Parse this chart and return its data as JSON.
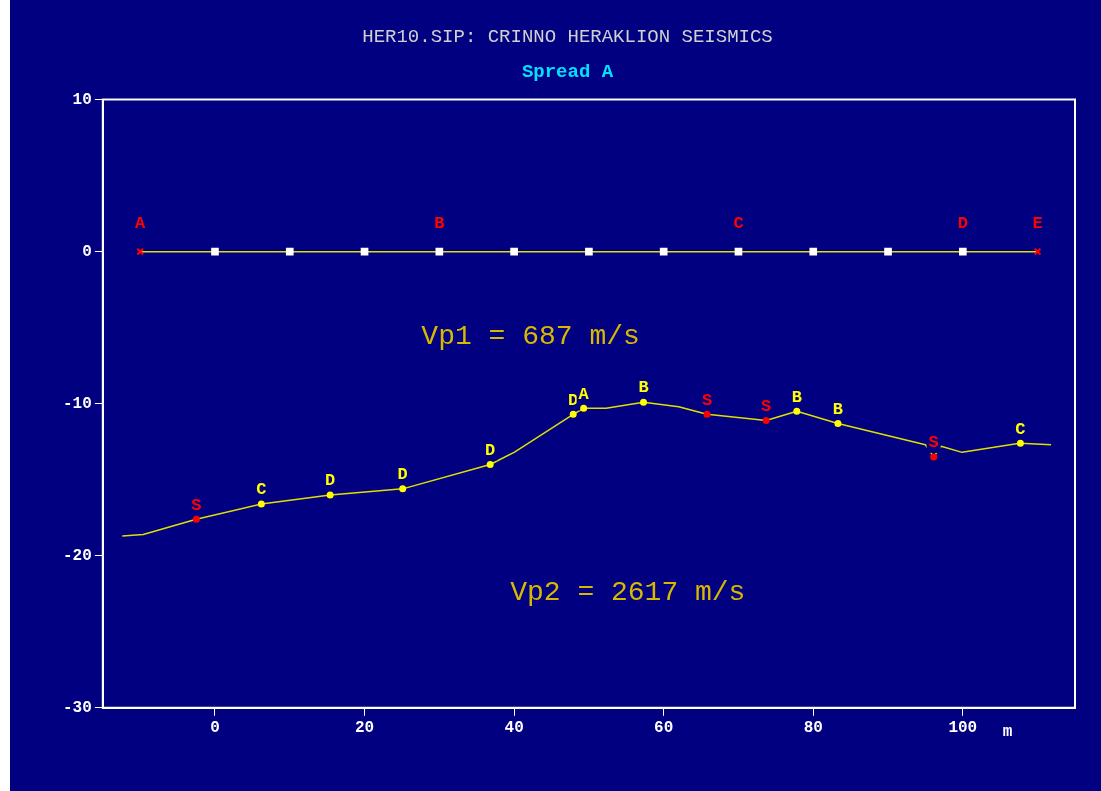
{
  "chart_data": {
    "type": "line",
    "title": "HER10.SIP: CRINNO HERAKLION SEISMICS",
    "subtitle": "Spread A",
    "xlabel": "m",
    "xlim": [
      -15,
      115
    ],
    "xticks": [
      0,
      20,
      40,
      60,
      80,
      100
    ],
    "ylim": [
      -30,
      10
    ],
    "yticks": [
      -30,
      -20,
      -10,
      0,
      10
    ],
    "grid": false,
    "legend": false,
    "annotations": [
      "Vp1 = 687 m/s",
      "Vp2 = 2617 m/s"
    ],
    "series": [
      {
        "color": "#e0e000",
        "marker": "none",
        "x": [
          -10,
          110
        ],
        "values": [
          0,
          0
        ]
      },
      {
        "type": "scatter",
        "color": "#ffffff",
        "marker": "square",
        "x": [
          0,
          10,
          20,
          30,
          40,
          50,
          60,
          70,
          80,
          90,
          100
        ],
        "values": [
          0,
          0,
          0,
          0,
          0,
          0,
          0,
          0,
          0,
          0,
          0
        ]
      },
      {
        "type": "scatter",
        "color": "#ff0000",
        "marker": "cross",
        "x": [
          -10,
          30,
          70,
          100,
          110
        ],
        "values": [
          0,
          0,
          0,
          0,
          0
        ],
        "value_labels": [
          "A",
          "B",
          "C",
          "D",
          "E"
        ]
      },
      {
        "color": "#e0e000",
        "marker": "none",
        "x": [
          -12.4,
          -9.6,
          -2.5,
          6.2,
          15.4,
          25.1,
          36.8,
          40,
          47.9,
          49.3,
          52.3,
          57.3,
          62,
          65.8,
          73.7,
          77.8,
          83.3,
          95,
          96.1,
          97.1,
          99.9,
          107.7,
          111.8
        ],
        "values": [
          -18.7,
          -18.6,
          -17.6,
          -16.6,
          -16.0,
          -15.6,
          -14.0,
          -13.2,
          -10.7,
          -10.3,
          -10.3,
          -9.9,
          -10.2,
          -10.7,
          -11.1,
          -10.5,
          -11.3,
          -12.7,
          -13.5,
          -12.8,
          -13.2,
          -12.6,
          -12.7
        ]
      },
      {
        "type": "scatter",
        "color": "#ffff00",
        "marker": "circle",
        "x": [
          6.2,
          15.4,
          25.1,
          36.8,
          47.9,
          49.3,
          57.3,
          77.8,
          83.3,
          107.7
        ],
        "values": [
          -16.6,
          -16.0,
          -15.6,
          -14.0,
          -10.7,
          -10.3,
          -9.9,
          -10.5,
          -11.3,
          -12.6
        ],
        "value_labels": [
          "C",
          "D",
          "D",
          "D",
          "D",
          "A",
          "B",
          "B",
          "B",
          "C"
        ]
      },
      {
        "type": "scatter",
        "color": "#ff0000",
        "marker": "circle",
        "x": [
          -2.5,
          65.8,
          73.7,
          96.1
        ],
        "values": [
          -17.6,
          -10.7,
          -11.1,
          -13.5
        ],
        "value_labels": [
          "S",
          "S",
          "S",
          "S"
        ]
      }
    ]
  }
}
